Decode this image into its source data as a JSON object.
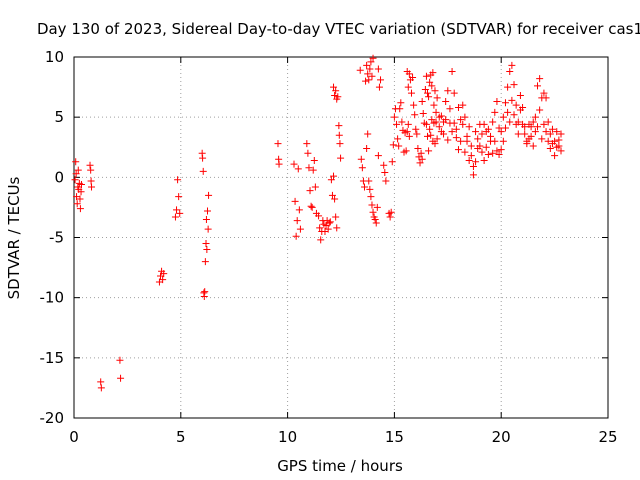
{
  "chart_data": {
    "type": "scatter",
    "title": "Day 130 of 2023, Sidereal Day-to-day VTEC variation (SDTVAR) for receiver cas1",
    "xlabel": "GPS time / hours",
    "ylabel": "SDTVAR / TECUs",
    "xlim": [
      0,
      25
    ],
    "ylim": [
      -20,
      10
    ],
    "x_ticks": [
      0,
      5,
      10,
      15,
      20,
      25
    ],
    "y_ticks": [
      -20,
      -15,
      -10,
      -5,
      0,
      5,
      10
    ],
    "x_tick_labels": [
      "0",
      "5",
      "10",
      "15",
      "20",
      "25"
    ],
    "y_tick_labels": [
      "-20",
      "-15",
      "-10",
      "-5",
      "0",
      "5",
      "10"
    ],
    "grid": true,
    "marker": "+",
    "color": "#ff0000",
    "series": [
      {
        "name": "SDTVAR",
        "points": [
          [
            0.05,
            -0.2
          ],
          [
            0.08,
            1.3
          ],
          [
            0.1,
            0.3
          ],
          [
            0.12,
            -1.6
          ],
          [
            0.15,
            -2.2
          ],
          [
            0.18,
            -0.8
          ],
          [
            0.2,
            0.6
          ],
          [
            0.22,
            -1.0
          ],
          [
            0.25,
            -0.5
          ],
          [
            0.28,
            -1.8
          ],
          [
            0.3,
            -2.6
          ],
          [
            0.33,
            -1.2
          ],
          [
            0.35,
            -0.6
          ],
          [
            0.75,
            1.0
          ],
          [
            0.78,
            0.6
          ],
          [
            0.8,
            -0.3
          ],
          [
            0.82,
            -0.8
          ],
          [
            1.25,
            -17.0
          ],
          [
            1.28,
            -17.5
          ],
          [
            2.15,
            -15.2
          ],
          [
            2.18,
            -16.7
          ],
          [
            4.0,
            -8.7
          ],
          [
            4.05,
            -8.2
          ],
          [
            4.1,
            -7.8
          ],
          [
            4.15,
            -8.5
          ],
          [
            4.2,
            -8.0
          ],
          [
            4.75,
            -3.3
          ],
          [
            4.8,
            -2.7
          ],
          [
            4.85,
            -0.2
          ],
          [
            4.9,
            -1.6
          ],
          [
            4.95,
            -3.0
          ],
          [
            6.0,
            2.0
          ],
          [
            6.02,
            1.6
          ],
          [
            6.05,
            0.5
          ],
          [
            6.08,
            -9.6
          ],
          [
            6.1,
            -9.9
          ],
          [
            6.12,
            -9.5
          ],
          [
            6.15,
            -7.0
          ],
          [
            6.18,
            -5.5
          ],
          [
            6.2,
            -3.5
          ],
          [
            6.22,
            -6.0
          ],
          [
            6.25,
            -2.8
          ],
          [
            6.28,
            -4.3
          ],
          [
            6.3,
            -1.5
          ],
          [
            9.55,
            2.8
          ],
          [
            9.58,
            1.5
          ],
          [
            9.6,
            1.1
          ],
          [
            10.3,
            1.1
          ],
          [
            10.35,
            -2.0
          ],
          [
            10.4,
            -4.9
          ],
          [
            10.45,
            -3.6
          ],
          [
            10.5,
            0.7
          ],
          [
            10.55,
            -2.7
          ],
          [
            10.6,
            -4.3
          ],
          [
            10.9,
            2.8
          ],
          [
            10.95,
            2.0
          ],
          [
            11.0,
            0.8
          ],
          [
            11.05,
            -1.1
          ],
          [
            11.1,
            -2.4
          ],
          [
            11.15,
            -2.5
          ],
          [
            11.2,
            0.6
          ],
          [
            11.25,
            1.4
          ],
          [
            11.3,
            -0.8
          ],
          [
            11.35,
            -3.0
          ],
          [
            11.45,
            -3.2
          ],
          [
            11.5,
            -4.2
          ],
          [
            11.55,
            -5.2
          ],
          [
            11.6,
            -4.5
          ],
          [
            11.65,
            -3.6
          ],
          [
            11.7,
            -3.9
          ],
          [
            11.75,
            -4.5
          ],
          [
            11.8,
            -4.0
          ],
          [
            11.85,
            -3.6
          ],
          [
            11.9,
            -4.3
          ],
          [
            11.95,
            -3.8
          ],
          [
            12.0,
            -3.7
          ],
          [
            12.05,
            -0.2
          ],
          [
            12.1,
            -1.5
          ],
          [
            12.15,
            0.1
          ],
          [
            12.2,
            -1.8
          ],
          [
            12.25,
            -3.3
          ],
          [
            12.3,
            -4.2
          ],
          [
            12.15,
            7.5
          ],
          [
            12.2,
            6.8
          ],
          [
            12.25,
            7.2
          ],
          [
            12.3,
            6.5
          ],
          [
            12.35,
            6.7
          ],
          [
            12.4,
            4.3
          ],
          [
            12.42,
            3.5
          ],
          [
            12.45,
            2.8
          ],
          [
            12.48,
            1.6
          ],
          [
            13.4,
            8.9
          ],
          [
            13.45,
            1.5
          ],
          [
            13.5,
            0.8
          ],
          [
            13.55,
            -0.3
          ],
          [
            13.6,
            -0.8
          ],
          [
            13.65,
            8.0
          ],
          [
            13.7,
            9.3
          ],
          [
            13.75,
            8.6
          ],
          [
            13.8,
            8.1
          ],
          [
            13.85,
            9.0
          ],
          [
            13.9,
            9.6
          ],
          [
            13.95,
            8.4
          ],
          [
            14.0,
            9.9
          ],
          [
            13.7,
            2.4
          ],
          [
            13.75,
            3.6
          ],
          [
            13.8,
            -0.3
          ],
          [
            13.85,
            -1.0
          ],
          [
            13.9,
            -1.6
          ],
          [
            13.95,
            -2.3
          ],
          [
            14.0,
            -2.9
          ],
          [
            14.05,
            -3.3
          ],
          [
            14.1,
            -3.5
          ],
          [
            14.15,
            -3.8
          ],
          [
            14.2,
            -2.5
          ],
          [
            14.25,
            1.8
          ],
          [
            14.25,
            9.0
          ],
          [
            14.3,
            7.5
          ],
          [
            14.35,
            8.1
          ],
          [
            14.5,
            1.0
          ],
          [
            14.55,
            0.4
          ],
          [
            14.6,
            -0.3
          ],
          [
            14.75,
            -3.0
          ],
          [
            14.8,
            -3.3
          ],
          [
            14.85,
            -2.9
          ],
          [
            14.9,
            1.3
          ],
          [
            14.95,
            2.7
          ],
          [
            15.0,
            5.0
          ],
          [
            15.05,
            5.7
          ],
          [
            15.1,
            4.4
          ],
          [
            15.15,
            3.2
          ],
          [
            15.2,
            2.6
          ],
          [
            15.25,
            5.7
          ],
          [
            15.3,
            6.2
          ],
          [
            15.35,
            4.6
          ],
          [
            15.4,
            3.9
          ],
          [
            15.45,
            2.1
          ],
          [
            15.5,
            3.7
          ],
          [
            15.55,
            2.2
          ],
          [
            15.6,
            3.8
          ],
          [
            15.65,
            4.4
          ],
          [
            15.7,
            3.4
          ],
          [
            15.6,
            8.8
          ],
          [
            15.65,
            7.5
          ],
          [
            15.7,
            8.6
          ],
          [
            15.75,
            8.1
          ],
          [
            15.8,
            7.0
          ],
          [
            15.85,
            8.3
          ],
          [
            15.9,
            6.0
          ],
          [
            15.95,
            5.2
          ],
          [
            16.0,
            4.0
          ],
          [
            16.05,
            3.6
          ],
          [
            16.1,
            2.4
          ],
          [
            16.15,
            1.7
          ],
          [
            16.2,
            1.2
          ],
          [
            16.25,
            2.0
          ],
          [
            16.3,
            1.5
          ],
          [
            16.3,
            6.3
          ],
          [
            16.35,
            5.3
          ],
          [
            16.4,
            4.5
          ],
          [
            16.45,
            7.3
          ],
          [
            16.5,
            8.4
          ],
          [
            16.55,
            7.0
          ],
          [
            16.6,
            6.7
          ],
          [
            16.65,
            7.9
          ],
          [
            16.7,
            8.5
          ],
          [
            16.75,
            7.6
          ],
          [
            16.8,
            8.7
          ],
          [
            16.85,
            6.0
          ],
          [
            16.9,
            7.2
          ],
          [
            16.95,
            5.4
          ],
          [
            16.5,
            4.4
          ],
          [
            16.55,
            3.4
          ],
          [
            16.6,
            2.2
          ],
          [
            16.65,
            4.0
          ],
          [
            16.7,
            3.5
          ],
          [
            16.75,
            4.8
          ],
          [
            16.8,
            3.0
          ],
          [
            16.85,
            4.5
          ],
          [
            16.9,
            2.8
          ],
          [
            16.95,
            4.6
          ],
          [
            17.0,
            6.6
          ],
          [
            17.1,
            5.0
          ],
          [
            17.2,
            3.8
          ],
          [
            17.3,
            4.6
          ],
          [
            17.4,
            6.3
          ],
          [
            17.5,
            7.2
          ],
          [
            17.6,
            5.7
          ],
          [
            17.7,
            8.8
          ],
          [
            17.8,
            7.0
          ],
          [
            17.9,
            4.0
          ],
          [
            17.0,
            3.2
          ],
          [
            17.1,
            4.2
          ],
          [
            17.2,
            5.1
          ],
          [
            17.3,
            3.6
          ],
          [
            17.4,
            4.8
          ],
          [
            17.5,
            3.1
          ],
          [
            17.6,
            4.5
          ],
          [
            17.7,
            3.8
          ],
          [
            17.8,
            4.5
          ],
          [
            17.9,
            3.3
          ],
          [
            18.0,
            2.3
          ],
          [
            18.1,
            3.0
          ],
          [
            18.2,
            4.4
          ],
          [
            18.3,
            2.1
          ],
          [
            18.4,
            3.4
          ],
          [
            18.5,
            1.4
          ],
          [
            18.6,
            2.6
          ],
          [
            18.7,
            0.2
          ],
          [
            18.8,
            1.3
          ],
          [
            18.9,
            3.2
          ],
          [
            18.0,
            5.8
          ],
          [
            18.1,
            4.8
          ],
          [
            18.2,
            6.0
          ],
          [
            18.3,
            5.0
          ],
          [
            18.4,
            3.0
          ],
          [
            18.5,
            4.2
          ],
          [
            18.6,
            1.8
          ],
          [
            18.7,
            0.9
          ],
          [
            18.8,
            3.8
          ],
          [
            18.9,
            2.4
          ],
          [
            19.0,
            2.6
          ],
          [
            19.1,
            3.6
          ],
          [
            19.2,
            4.4
          ],
          [
            19.3,
            2.5
          ],
          [
            19.4,
            1.9
          ],
          [
            19.5,
            3.0
          ],
          [
            19.6,
            2.0
          ],
          [
            19.7,
            5.4
          ],
          [
            19.8,
            6.3
          ],
          [
            19.9,
            4.1
          ],
          [
            19.0,
            4.4
          ],
          [
            19.1,
            2.1
          ],
          [
            19.2,
            1.4
          ],
          [
            19.3,
            3.8
          ],
          [
            19.4,
            4.0
          ],
          [
            19.5,
            3.4
          ],
          [
            19.6,
            4.6
          ],
          [
            19.7,
            3.0
          ],
          [
            19.8,
            2.2
          ],
          [
            19.9,
            1.9
          ],
          [
            20.0,
            3.8
          ],
          [
            20.1,
            5.0
          ],
          [
            20.2,
            6.2
          ],
          [
            20.3,
            7.5
          ],
          [
            20.4,
            8.8
          ],
          [
            20.5,
            9.3
          ],
          [
            20.6,
            7.7
          ],
          [
            20.7,
            6.0
          ],
          [
            20.8,
            4.6
          ],
          [
            20.9,
            5.6
          ],
          [
            20.0,
            2.3
          ],
          [
            20.1,
            3.0
          ],
          [
            20.2,
            4.1
          ],
          [
            20.3,
            5.4
          ],
          [
            20.4,
            4.6
          ],
          [
            20.5,
            6.4
          ],
          [
            20.6,
            5.2
          ],
          [
            20.7,
            4.4
          ],
          [
            20.8,
            3.6
          ],
          [
            20.9,
            6.8
          ],
          [
            21.0,
            4.4
          ],
          [
            21.1,
            3.6
          ],
          [
            21.2,
            2.8
          ],
          [
            21.3,
            3.2
          ],
          [
            21.4,
            4.2
          ],
          [
            21.5,
            2.6
          ],
          [
            21.6,
            3.8
          ],
          [
            21.7,
            7.6
          ],
          [
            21.8,
            8.2
          ],
          [
            21.9,
            6.6
          ],
          [
            21.0,
            5.8
          ],
          [
            21.1,
            4.2
          ],
          [
            21.2,
            3.0
          ],
          [
            21.3,
            4.4
          ],
          [
            21.4,
            3.4
          ],
          [
            21.5,
            4.6
          ],
          [
            21.6,
            5.0
          ],
          [
            21.7,
            4.2
          ],
          [
            21.8,
            5.6
          ],
          [
            21.9,
            3.2
          ],
          [
            22.0,
            4.4
          ],
          [
            22.1,
            3.8
          ],
          [
            22.2,
            3.0
          ],
          [
            22.3,
            2.4
          ],
          [
            22.4,
            2.8
          ],
          [
            22.5,
            1.8
          ],
          [
            22.6,
            2.5
          ],
          [
            22.7,
            3.1
          ],
          [
            22.8,
            3.6
          ],
          [
            22.0,
            7.0
          ],
          [
            22.1,
            6.6
          ],
          [
            22.2,
            4.6
          ],
          [
            22.3,
            3.6
          ],
          [
            22.4,
            4.0
          ],
          [
            22.5,
            3.0
          ],
          [
            22.6,
            3.8
          ],
          [
            22.7,
            2.6
          ],
          [
            22.8,
            2.2
          ]
        ]
      }
    ]
  }
}
